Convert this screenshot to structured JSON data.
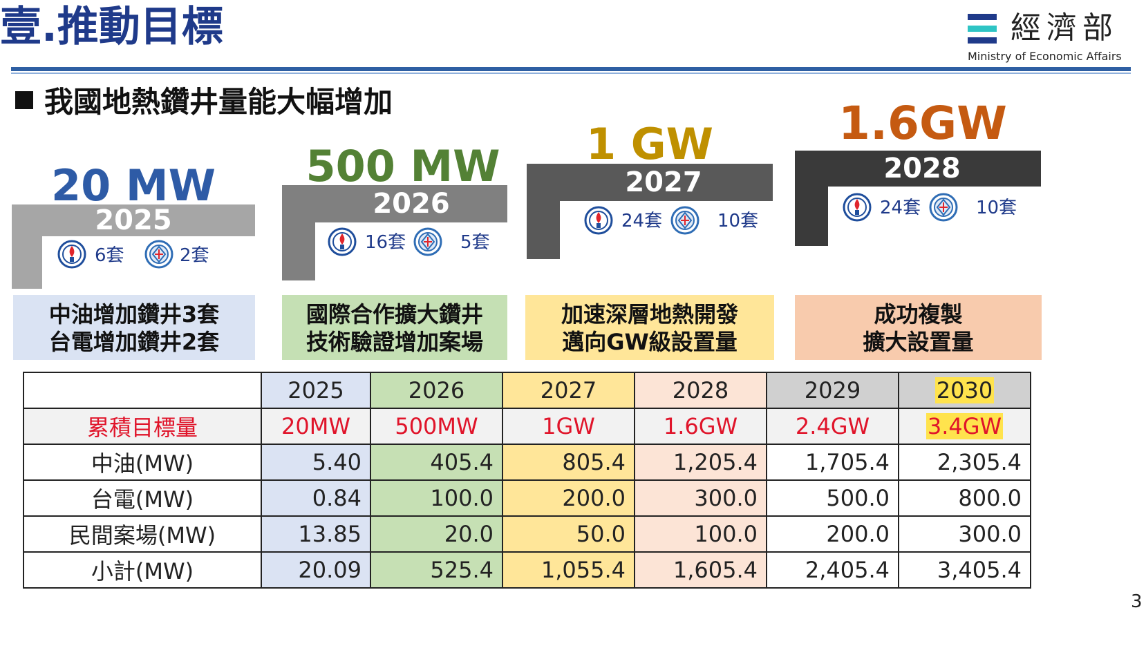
{
  "header": {
    "title": "壹.推動目標",
    "logo_cn": "經濟部",
    "logo_en": "Ministry of Economic Affairs",
    "logo_colors": [
      "#1f3a8a",
      "#2ec4c4",
      "#1f3a8a"
    ]
  },
  "subtitle": "我國地熱鑽井量能大幅增加",
  "milestones": [
    {
      "target": "20 MW",
      "year": "2025",
      "cpc_count": "6套",
      "taipower_count": "2套",
      "target_color": "#2e5ba6",
      "bar_color": "#a6a6a6"
    },
    {
      "target": "500 MW",
      "year": "2026",
      "cpc_count": "16套",
      "taipower_count": "5套",
      "target_color": "#538135",
      "bar_color": "#808080"
    },
    {
      "target": "1 GW",
      "year": "2027",
      "cpc_count": "24套",
      "taipower_count": "10套",
      "target_color": "#bf9000",
      "bar_color": "#595959"
    },
    {
      "target": "1.6GW",
      "year": "2028",
      "cpc_count": "24套",
      "taipower_count": "10套",
      "target_color": "#c55a11",
      "bar_color": "#3a3a3a"
    }
  ],
  "icons": {
    "cpc": "cpc-emblem-icon",
    "taipower": "taipower-emblem-icon"
  },
  "goals": [
    {
      "line1": "中油增加鑽井3套",
      "line2": "台電增加鑽井2套",
      "color": "#dae3f3"
    },
    {
      "line1": "國際合作擴大鑽井",
      "line2": "技術驗證增加案場",
      "color": "#c5e0b4"
    },
    {
      "line1": "加速深層地熱開發",
      "line2": "邁向GW級設置量",
      "color": "#ffe699"
    },
    {
      "line1": "成功複製",
      "line2": "擴大設置量",
      "color": "#f8cbad"
    }
  ],
  "table": {
    "years": [
      "2025",
      "2026",
      "2027",
      "2028",
      "2029",
      "2030"
    ],
    "rows": [
      {
        "label": "累積目標量",
        "values": [
          "20MW",
          "500MW",
          "1GW",
          "1.6GW",
          "2.4GW",
          "3.4GW"
        ]
      },
      {
        "label": "中油(MW)",
        "values": [
          "5.40",
          "405.4",
          "805.4",
          "1,205.4",
          "1,705.4",
          "2,305.4"
        ]
      },
      {
        "label": "台電(MW)",
        "values": [
          "0.84",
          "100.0",
          "200.0",
          "300.0",
          "500.0",
          "800.0"
        ]
      },
      {
        "label": "民間案場(MW)",
        "values": [
          "13.85",
          "20.0",
          "50.0",
          "100.0",
          "200.0",
          "300.0"
        ]
      },
      {
        "label": "小計(MW)",
        "values": [
          "20.09",
          "525.4",
          "1,055.4",
          "1,605.4",
          "2,405.4",
          "3,405.4"
        ]
      }
    ]
  },
  "page_number": "3"
}
